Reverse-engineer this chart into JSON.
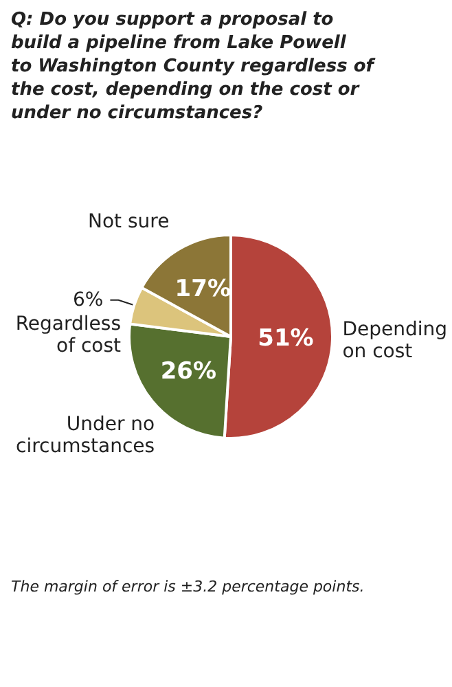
{
  "chart_data": {
    "type": "pie",
    "title": "Q: Do you support a proposal to build a pipeline from Lake Powell to Washington County regardless of the cost, depending on the cost or under no circumstances?",
    "categories": [
      "Depending on cost",
      "Under no circumstances",
      "Regardless of cost",
      "Not sure"
    ],
    "values": [
      51,
      26,
      6,
      17
    ],
    "colors": [
      "#b5433b",
      "#56702f",
      "#dcc47c",
      "#8c7637"
    ],
    "value_labels": [
      "51%",
      "26%",
      "6%",
      "17%"
    ],
    "annotations": [
      "The margin of error is ±3.2 percentage points."
    ]
  }
}
